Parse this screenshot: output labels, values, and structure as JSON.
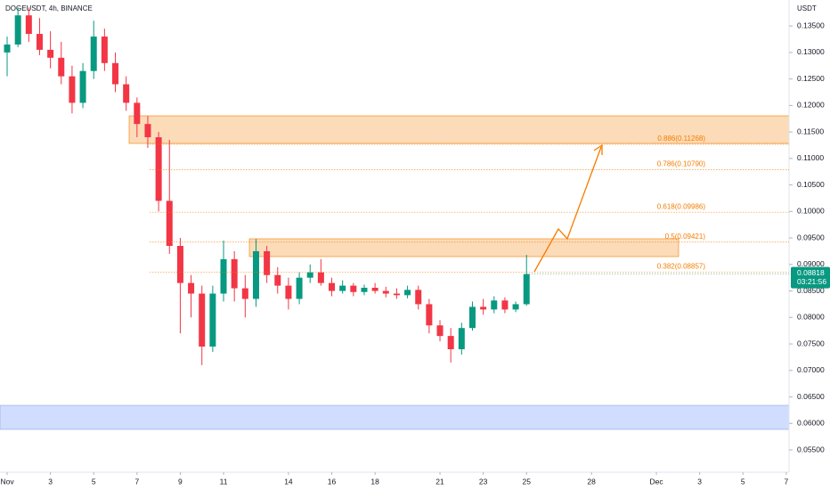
{
  "chart_data": {
    "type": "candlestick",
    "title": "DOGEUSDT, 4h, BINANCE",
    "y_axis_label": "USDT",
    "x": [
      1,
      1.5,
      2,
      2.5,
      3,
      3.5,
      4,
      4.5,
      5,
      5.5,
      6,
      6.5,
      7,
      7.5,
      8,
      8.5,
      9,
      9.5,
      10,
      10.5,
      11,
      11.5,
      12,
      12.5,
      13,
      13.5,
      14,
      14.5,
      15,
      15.5,
      16,
      16.5,
      17,
      17.5,
      18,
      18.5,
      19,
      19.5,
      20,
      20.5,
      21,
      21.5,
      22,
      22.5,
      23,
      23.5,
      24,
      24.5,
      25
    ],
    "open": [
      0.13,
      0.1315,
      0.137,
      0.1335,
      0.1305,
      0.129,
      0.1255,
      0.1205,
      0.1265,
      0.133,
      0.128,
      0.124,
      0.1205,
      0.1165,
      0.114,
      0.102,
      0.0935,
      0.0865,
      0.0845,
      0.0745,
      0.0845,
      0.091,
      0.0855,
      0.0835,
      0.0925,
      0.088,
      0.086,
      0.0835,
      0.0875,
      0.0885,
      0.0865,
      0.085,
      0.086,
      0.0848,
      0.0856,
      0.085,
      0.0845,
      0.0842,
      0.0852,
      0.0825,
      0.0785,
      0.0765,
      0.074,
      0.078,
      0.082,
      0.0815,
      0.0832,
      0.0815,
      0.0825
    ],
    "high": [
      0.133,
      0.1385,
      0.1385,
      0.1365,
      0.134,
      0.132,
      0.1275,
      0.128,
      0.136,
      0.1345,
      0.13,
      0.1255,
      0.1215,
      0.118,
      0.115,
      0.1135,
      0.095,
      0.088,
      0.086,
      0.086,
      0.0945,
      0.0925,
      0.088,
      0.0948,
      0.0935,
      0.0895,
      0.0875,
      0.0885,
      0.09,
      0.091,
      0.0875,
      0.087,
      0.0865,
      0.0862,
      0.0865,
      0.0858,
      0.0855,
      0.086,
      0.086,
      0.0835,
      0.0795,
      0.078,
      0.079,
      0.083,
      0.0835,
      0.084,
      0.0838,
      0.083,
      0.0918
    ],
    "low": [
      0.1255,
      0.131,
      0.132,
      0.1295,
      0.127,
      0.124,
      0.1185,
      0.1195,
      0.125,
      0.1265,
      0.1225,
      0.119,
      0.114,
      0.112,
      0.1,
      0.092,
      0.077,
      0.08,
      0.071,
      0.0735,
      0.083,
      0.083,
      0.08,
      0.082,
      0.0865,
      0.0845,
      0.0815,
      0.0825,
      0.0865,
      0.086,
      0.084,
      0.0845,
      0.084,
      0.0842,
      0.0845,
      0.0838,
      0.0835,
      0.0836,
      0.0815,
      0.077,
      0.0755,
      0.0715,
      0.073,
      0.0775,
      0.0805,
      0.0808,
      0.0808,
      0.081,
      0.0822
    ],
    "close": [
      0.1315,
      0.137,
      0.1335,
      0.1305,
      0.129,
      0.1255,
      0.1205,
      0.1265,
      0.133,
      0.128,
      0.124,
      0.1205,
      0.1165,
      0.114,
      0.102,
      0.0935,
      0.0865,
      0.0845,
      0.0745,
      0.0845,
      0.091,
      0.0855,
      0.0835,
      0.0925,
      0.088,
      0.086,
      0.0835,
      0.0875,
      0.0885,
      0.0865,
      0.085,
      0.086,
      0.0848,
      0.0856,
      0.085,
      0.0845,
      0.0842,
      0.0852,
      0.0825,
      0.0785,
      0.0765,
      0.074,
      0.078,
      0.082,
      0.0815,
      0.0832,
      0.0815,
      0.0825,
      0.08818
    ],
    "up_color": "#089981",
    "down_color": "#f23645",
    "xlim": [
      0.67,
      37.13
    ],
    "xticks": [
      {
        "value": 1,
        "label": "Nov"
      },
      3,
      5,
      7,
      9,
      11,
      14,
      16,
      18,
      21,
      23,
      25,
      28,
      {
        "value": 31,
        "label": "Dec"
      },
      {
        "value": 33,
        "label": "3"
      },
      {
        "value": 35,
        "label": "5"
      },
      {
        "value": 37,
        "label": "7"
      }
    ],
    "ylim": [
      0.0508,
      0.1399
    ],
    "yticks": [
      {
        "value": 0.135,
        "label": "0.13500"
      },
      {
        "value": 0.13,
        "label": "0.13000"
      },
      {
        "value": 0.125,
        "label": "0.12500"
      },
      {
        "value": 0.12,
        "label": "0.12000"
      },
      {
        "value": 0.115,
        "label": "0.11500"
      },
      {
        "value": 0.11,
        "label": "0.11000"
      },
      {
        "value": 0.105,
        "label": "0.10500"
      },
      {
        "value": 0.1,
        "label": "0.10000"
      },
      {
        "value": 0.095,
        "label": "0.09500"
      },
      {
        "value": 0.09,
        "label": "0.09000"
      },
      {
        "value": 0.085,
        "label": "0.08500"
      },
      {
        "value": 0.08,
        "label": "0.08000"
      },
      {
        "value": 0.075,
        "label": "0.07500"
      },
      {
        "value": 0.07,
        "label": "0.07000"
      },
      {
        "value": 0.065,
        "label": "0.06500"
      },
      {
        "value": 0.06,
        "label": "0.06000"
      },
      {
        "value": 0.055,
        "label": "0.05500"
      }
    ],
    "fib_levels": [
      {
        "label": "0.886(0.11268)",
        "value": 0.11268
      },
      {
        "label": "0.786(0.10790)",
        "value": 0.1079
      },
      {
        "label": "0.618(0.09986)",
        "value": 0.09986
      },
      {
        "label": "0.5(0.09421)",
        "value": 0.09421
      },
      {
        "label": "0.382(0.08857)",
        "value": 0.08857
      }
    ],
    "fib_color": "#f57c00",
    "last_price": {
      "value": 0.08818,
      "label": "0.08818"
    },
    "countdown": "03:21:56"
  }
}
